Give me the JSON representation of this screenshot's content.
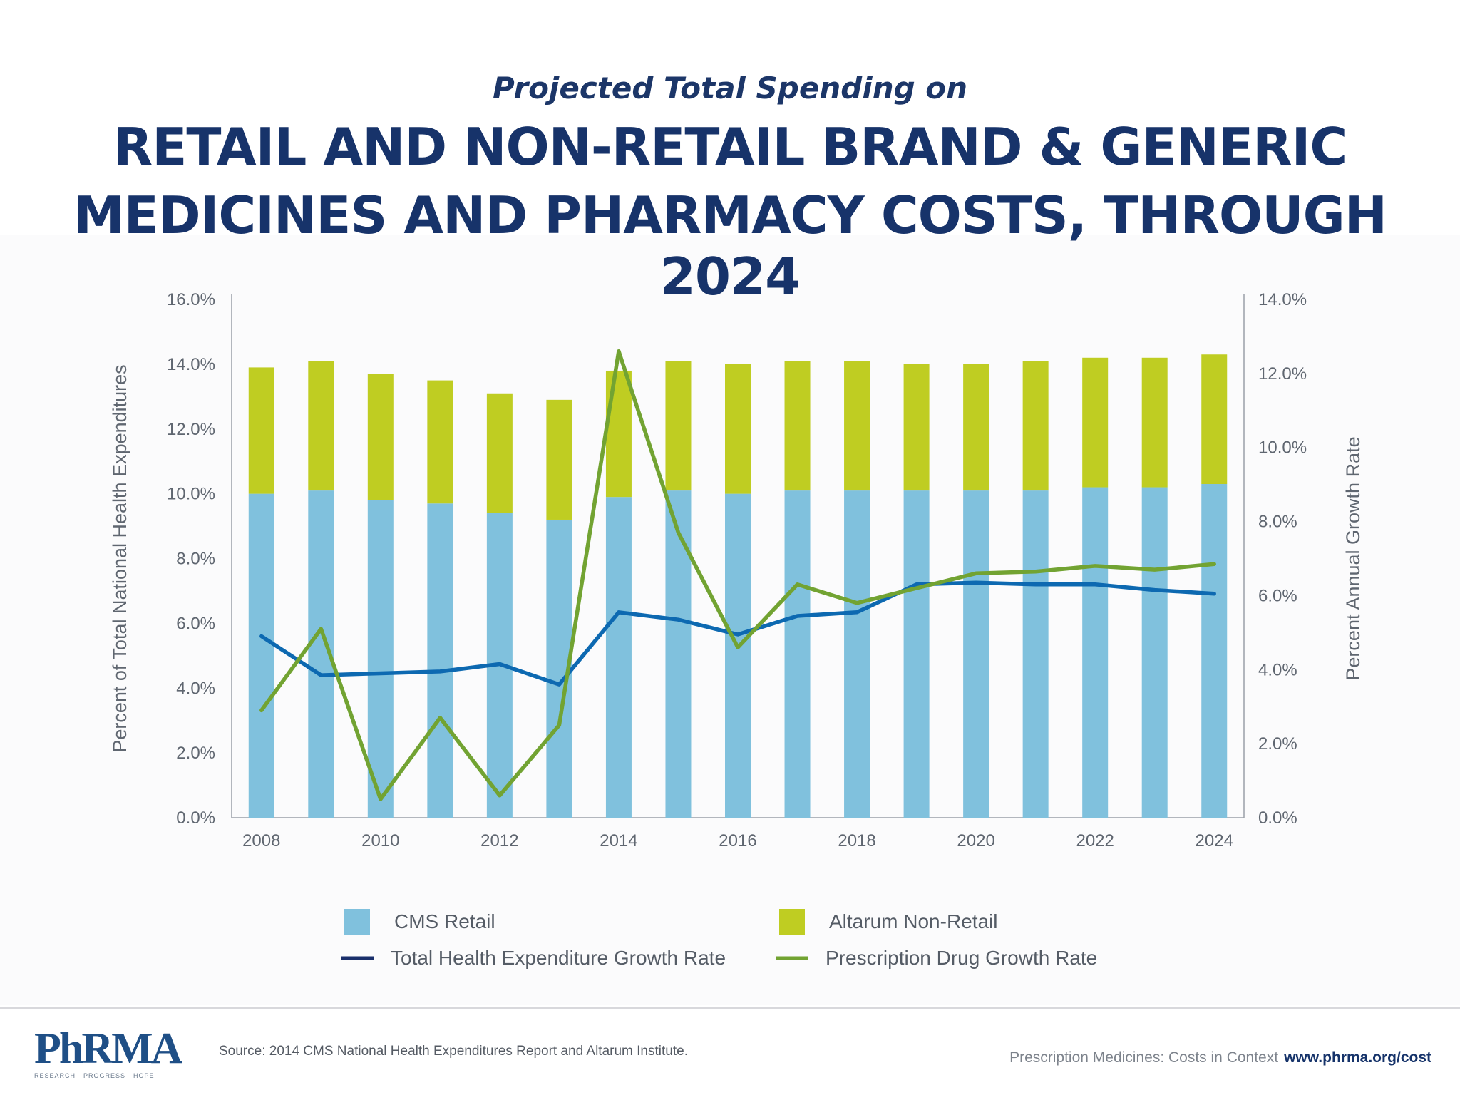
{
  "header": {
    "subtitle": "Projected Total Spending on",
    "title_line1": "RETAIL AND NON-RETAIL BRAND & GENERIC",
    "title_line2": "MEDICINES AND PHARMACY COSTS, THROUGH 2024"
  },
  "chart_data": {
    "type": "bar",
    "stacked": true,
    "categories": [
      "2008",
      "2009",
      "2010",
      "2011",
      "2012",
      "2013",
      "2014",
      "2015",
      "2016",
      "2017",
      "2018",
      "2019",
      "2020",
      "2021",
      "2022",
      "2023",
      "2024"
    ],
    "x_tick_labels": [
      "2008",
      "2010",
      "2012",
      "2014",
      "2016",
      "2018",
      "2020",
      "2022",
      "2024"
    ],
    "series": [
      {
        "name": "CMS Retail",
        "kind": "bar",
        "axis": "left",
        "color": "#80c1dd",
        "values": [
          10.0,
          10.1,
          9.8,
          9.7,
          9.4,
          9.2,
          9.9,
          10.1,
          10.0,
          10.1,
          10.1,
          10.1,
          10.1,
          10.1,
          10.2,
          10.2,
          10.3
        ]
      },
      {
        "name": "Altarum Non-Retail",
        "kind": "bar",
        "axis": "left",
        "color": "#bfcd22",
        "values": [
          3.9,
          4.0,
          3.9,
          3.8,
          3.7,
          3.7,
          3.9,
          4.0,
          4.0,
          4.0,
          4.0,
          3.9,
          3.9,
          4.0,
          4.0,
          4.0,
          4.0
        ]
      },
      {
        "name": "Total Health Expenditure Growth Rate",
        "kind": "line",
        "axis": "right",
        "color": "#0d69b1",
        "legend_color": "#1a2f6b",
        "values": [
          4.9,
          3.85,
          3.9,
          3.95,
          4.15,
          3.6,
          5.55,
          5.35,
          4.95,
          5.45,
          5.55,
          6.3,
          6.35,
          6.3,
          6.3,
          6.15,
          6.05
        ]
      },
      {
        "name": "Prescription Drug Growth Rate",
        "kind": "line",
        "axis": "right",
        "color": "#72a332",
        "values": [
          2.9,
          5.1,
          0.5,
          2.7,
          0.6,
          2.5,
          12.6,
          7.7,
          4.6,
          6.3,
          5.8,
          6.2,
          6.6,
          6.65,
          6.8,
          6.7,
          6.85
        ]
      }
    ],
    "y_left": {
      "label": "Percent of Total National Health Expenditures",
      "min": 0,
      "max": 16,
      "ticks": [
        "0.0%",
        "2.0%",
        "4.0%",
        "6.0%",
        "8.0%",
        "10.0%",
        "12.0%",
        "14.0%",
        "16.0%"
      ]
    },
    "y_right": {
      "label": "Percent Annual Growth Rate",
      "min": 0,
      "max": 14,
      "ticks": [
        "0.0%",
        "2.0%",
        "4.0%",
        "6.0%",
        "8.0%",
        "10.0%",
        "12.0%",
        "14.0%"
      ]
    },
    "grid": false,
    "legend_position": "bottom"
  },
  "footer": {
    "source": "Source: 2014 CMS National Health Expenditures Report and Altarum Institute.",
    "tagline": "Prescription Medicines: Costs in Context",
    "url": "www.phrma.org/cost",
    "logo_text": "PhRMA",
    "logo_tagline": "RESEARCH · PROGRESS · HOPE"
  }
}
